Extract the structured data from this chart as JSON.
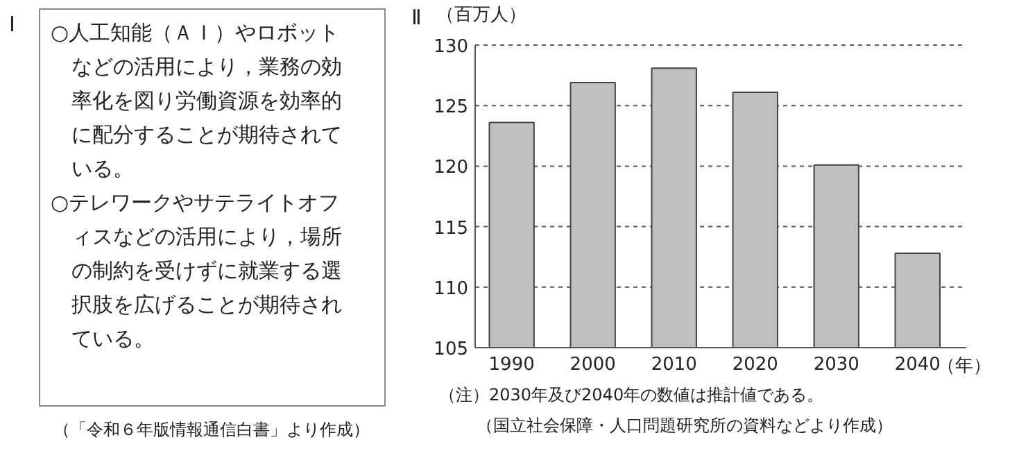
{
  "chart_data": [
    {
      "type": "other",
      "title": "I",
      "annotations": [
        "○人工知能（ＡＩ）やロボットなどの活用により，業務の効率化を図り労働資源を効率的に配分することが期待されている。",
        "○テレワークやサテライトオフィスなどの活用により，場所の制約を受けずに就業する選択肢を広げることが期待されている。",
        "（「令和６年版情報通信白書」より作成）"
      ]
    },
    {
      "type": "bar",
      "title": "Ⅱ",
      "ylabel": "（百万人）",
      "xlabel": "（年）",
      "categories": [
        "1990",
        "2000",
        "2010",
        "2020",
        "2030",
        "2040"
      ],
      "values": [
        123.6,
        126.9,
        128.1,
        126.1,
        120.1,
        112.8
      ],
      "color": "#bfbfbf",
      "ylim": [
        105,
        130
      ],
      "yticks": [
        105,
        110,
        115,
        120,
        125,
        130
      ],
      "grid": "y",
      "annotations": [
        "（注）2030年及び2040年の数値は推計値である。",
        "（国立社会保障・人口問題研究所の資料などより作成）"
      ]
    }
  ]
}
